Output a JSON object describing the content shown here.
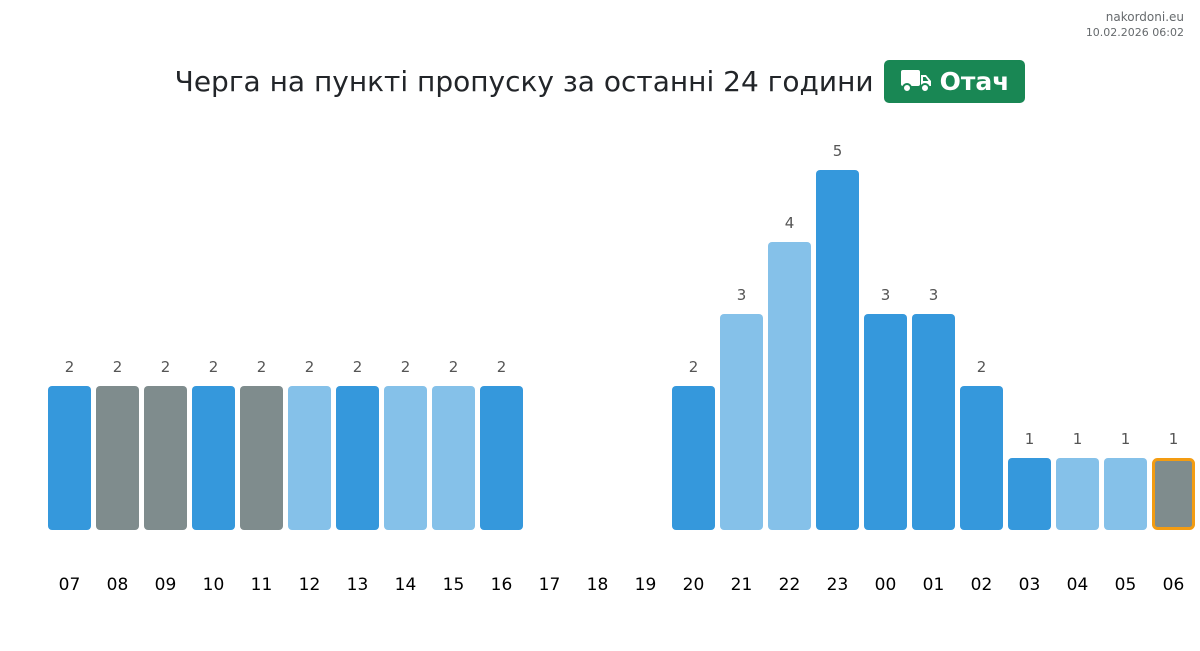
{
  "header": {
    "site": "nakordoni.eu",
    "timestamp": "10.02.2026 06:02"
  },
  "title": "Черга на пункті пропуску за останні 24 години",
  "badge": {
    "icon": "truck-icon",
    "label": "Отач",
    "color": "#198754"
  },
  "colors": {
    "dark_blue": "#3598dc",
    "light_blue": "#85c1e9",
    "gray": "#7f8c8d",
    "highlight_border": "#f39c12",
    "value_label": "#555555",
    "tick_label": "#000000"
  },
  "chart_data": {
    "type": "bar",
    "title": "Черга на пункті пропуску за останні 24 години",
    "xlabel": "",
    "ylabel": "",
    "categories": [
      "07",
      "08",
      "09",
      "10",
      "11",
      "12",
      "13",
      "14",
      "15",
      "16",
      "17",
      "18",
      "19",
      "20",
      "21",
      "22",
      "23",
      "00",
      "01",
      "02",
      "03",
      "04",
      "05",
      "06"
    ],
    "values": [
      2,
      2,
      2,
      2,
      2,
      2,
      2,
      2,
      2,
      2,
      null,
      null,
      null,
      2,
      3,
      4,
      5,
      3,
      3,
      2,
      1,
      1,
      1,
      1
    ],
    "bar_colors": [
      "dark_blue",
      "gray",
      "gray",
      "dark_blue",
      "gray",
      "light_blue",
      "dark_blue",
      "light_blue",
      "light_blue",
      "dark_blue",
      null,
      null,
      null,
      "dark_blue",
      "light_blue",
      "light_blue",
      "dark_blue",
      "dark_blue",
      "dark_blue",
      "dark_blue",
      "dark_blue",
      "light_blue",
      "light_blue",
      "gray"
    ],
    "highlighted_category": "06",
    "ylim": [
      0,
      5
    ],
    "grid": false,
    "value_labels": true
  }
}
